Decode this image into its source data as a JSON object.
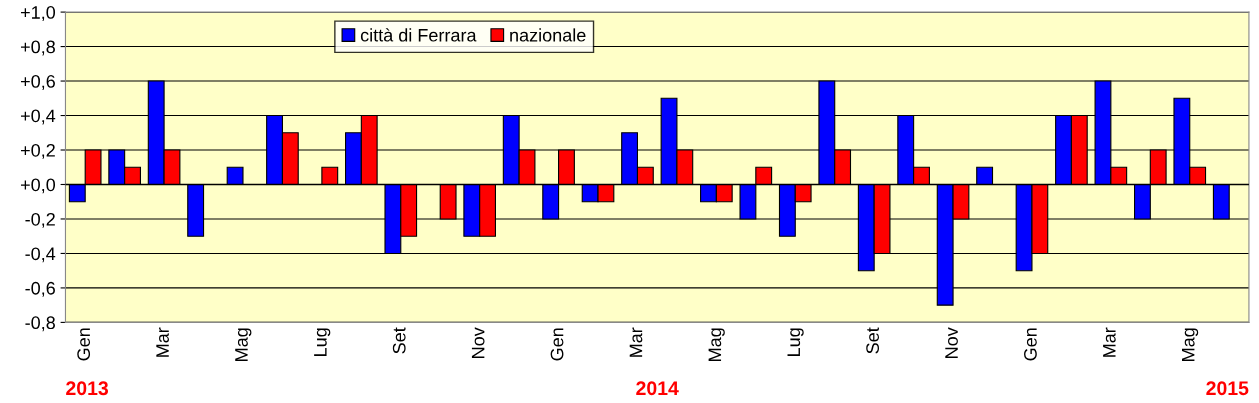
{
  "chart_data": {
    "type": "bar",
    "categories": [
      "Gen",
      null,
      "Mar",
      null,
      "Mag",
      null,
      "Lug",
      null,
      "Set",
      null,
      "Nov",
      null,
      "Gen",
      null,
      "Mar",
      null,
      "Mag",
      null,
      "Lug",
      null,
      "Set",
      null,
      "Nov",
      null,
      "Gen",
      null,
      "Mar",
      null,
      "Mag",
      null
    ],
    "series": [
      {
        "name": "città di Ferrara",
        "color": "#0000ff",
        "values": [
          -0.1,
          0.2,
          0.6,
          -0.3,
          0.1,
          0.4,
          null,
          0.3,
          -0.4,
          null,
          -0.3,
          0.4,
          -0.2,
          -0.1,
          0.3,
          0.5,
          -0.1,
          -0.2,
          -0.3,
          0.6,
          -0.5,
          0.4,
          -0.7,
          0.1,
          -0.5,
          0.4,
          0.6,
          -0.2,
          0.5,
          -0.2
        ]
      },
      {
        "name": "nazionale",
        "color": "#ff0000",
        "values": [
          0.2,
          0.1,
          0.2,
          null,
          null,
          0.3,
          0.1,
          0.4,
          -0.3,
          -0.2,
          -0.3,
          0.2,
          0.2,
          -0.1,
          0.1,
          0.2,
          -0.1,
          0.1,
          -0.1,
          0.2,
          -0.4,
          0.1,
          -0.2,
          null,
          -0.4,
          0.4,
          0.1,
          0.2,
          0.1,
          null
        ]
      }
    ],
    "ylim": [
      -0.8,
      1.0
    ],
    "yticks": [
      {
        "value": -0.8,
        "label": "-0,8"
      },
      {
        "value": -0.6,
        "label": "-0,6"
      },
      {
        "value": -0.4,
        "label": "-0,4"
      },
      {
        "value": -0.2,
        "label": "-0,2"
      },
      {
        "value": 0,
        "label": "+0,0"
      },
      {
        "value": 0.2,
        "label": "+0,2"
      },
      {
        "value": 0.4,
        "label": "+0,4"
      },
      {
        "value": 0.6,
        "label": "+0,6"
      },
      {
        "value": 0.8,
        "label": "+0,8"
      },
      {
        "value": 1.0,
        "label": "+1,0"
      }
    ],
    "grid": "y",
    "legend": "top left",
    "annotations": [
      "2013",
      "2014",
      "2015"
    ]
  }
}
